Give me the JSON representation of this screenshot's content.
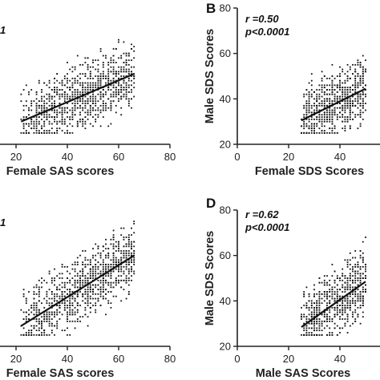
{
  "chart_data": [
    {
      "panel": "A",
      "type": "scatter",
      "letter": "",
      "stats": [
        "1"
      ],
      "xlabel": "Female SAS scores",
      "ylabel": "",
      "xlim": [
        0,
        80
      ],
      "ylim": [
        20,
        80
      ],
      "xticks": [
        20,
        40,
        60,
        80
      ],
      "yticks": [],
      "x_range": [
        22,
        66
      ],
      "y_range": [
        25,
        75
      ],
      "n_points": 950,
      "regression": {
        "x0": 22,
        "y0": 30,
        "x1": 66,
        "y1": 51
      }
    },
    {
      "panel": "B",
      "type": "scatter",
      "letter": "B",
      "stats": [
        "r =0.50",
        "p<0.0001"
      ],
      "xlabel": "Female SDS Scores",
      "ylabel": "Male SDS Scores",
      "xlim": [
        0,
        80
      ],
      "ylim": [
        20,
        80
      ],
      "xticks": [
        0,
        20,
        40
      ],
      "yticks": [
        20,
        40,
        60,
        80
      ],
      "x_range": [
        25,
        50
      ],
      "y_range": [
        25,
        65
      ],
      "n_points": 700,
      "regression": {
        "x0": 25,
        "y0": 30.5,
        "x1": 50,
        "y1": 44.5
      }
    },
    {
      "panel": "C",
      "type": "scatter",
      "letter": "",
      "stats": [
        "1"
      ],
      "xlabel": "Female SAS scores",
      "ylabel": "",
      "xlim": [
        0,
        80
      ],
      "ylim": [
        20,
        80
      ],
      "xticks": [
        20,
        40,
        60,
        80
      ],
      "yticks": [],
      "x_range": [
        22,
        66
      ],
      "y_range": [
        25,
        75
      ],
      "n_points": 1000,
      "regression": {
        "x0": 22,
        "y0": 29,
        "x1": 66,
        "y1": 60
      }
    },
    {
      "panel": "D",
      "type": "scatter",
      "letter": "D",
      "stats": [
        "r =0.62",
        "p<0.0001"
      ],
      "xlabel": "Male SAS Scores",
      "ylabel": "Male SDS Scores",
      "xlim": [
        0,
        80
      ],
      "ylim": [
        20,
        80
      ],
      "xticks": [
        0,
        20,
        40
      ],
      "yticks": [
        20,
        40,
        60,
        80
      ],
      "x_range": [
        25,
        50
      ],
      "y_range": [
        25,
        70
      ],
      "n_points": 700,
      "regression": {
        "x0": 25,
        "y0": 28.5,
        "x1": 50,
        "y1": 48.5
      }
    }
  ]
}
